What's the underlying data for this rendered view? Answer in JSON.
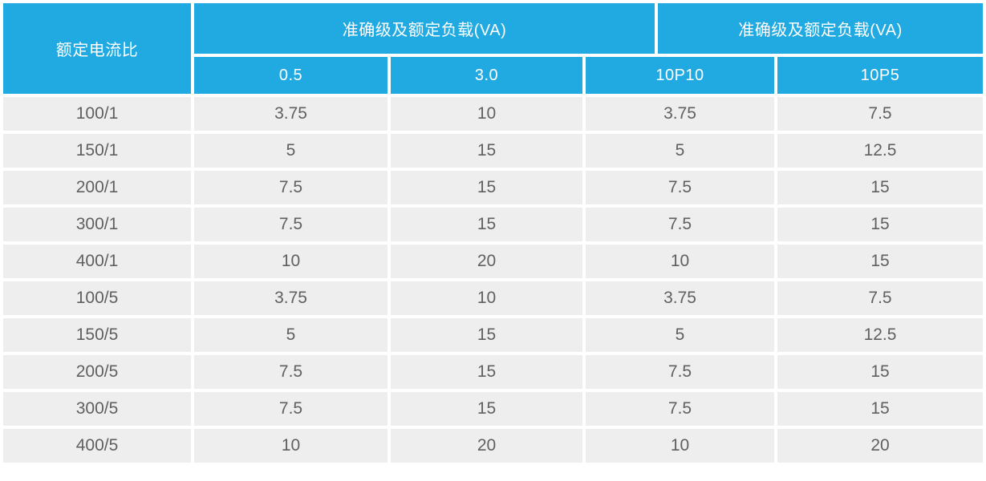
{
  "colors": {
    "header_bg": "#20aae1",
    "header_text": "#ffffff",
    "row_bg": "#eeeeee",
    "body_text": "#606062",
    "grid_gap": "#ffffff"
  },
  "chart_data": {
    "type": "table",
    "corner_header": "额定电流比",
    "column_groups": [
      {
        "label": "准确级及额定负载(VA)",
        "columns": [
          "0.5",
          "3.0"
        ]
      },
      {
        "label": "准确级及额定负载(VA)",
        "columns": [
          "10P10",
          "10P5"
        ]
      }
    ],
    "sub_headers": [
      "0.5",
      "3.0",
      "10P10",
      "10P5"
    ],
    "rows": [
      [
        "100/1",
        "3.75",
        "10",
        "3.75",
        "7.5"
      ],
      [
        "150/1",
        "5",
        "15",
        "5",
        "12.5"
      ],
      [
        "200/1",
        "7.5",
        "15",
        "7.5",
        "15"
      ],
      [
        "300/1",
        "7.5",
        "15",
        "7.5",
        "15"
      ],
      [
        "400/1",
        "10",
        "20",
        "10",
        "15"
      ],
      [
        "100/5",
        "3.75",
        "10",
        "3.75",
        "7.5"
      ],
      [
        "150/5",
        "5",
        "15",
        "5",
        "12.5"
      ],
      [
        "200/5",
        "7.5",
        "15",
        "7.5",
        "15"
      ],
      [
        "300/5",
        "7.5",
        "15",
        "7.5",
        "15"
      ],
      [
        "400/5",
        "10",
        "20",
        "10",
        "20"
      ]
    ]
  }
}
